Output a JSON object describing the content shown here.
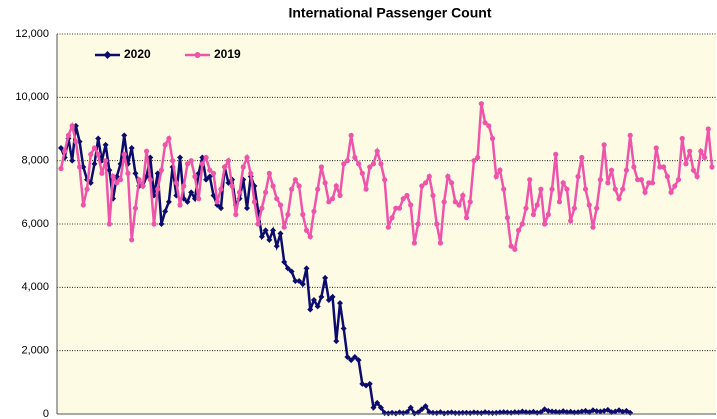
{
  "chart_data": {
    "type": "line",
    "title": "International Passenger Count",
    "ylim": [
      0,
      12000
    ],
    "yticks": [
      0,
      {
        "value": 2000,
        "label": "2,000"
      },
      {
        "value": 4000,
        "label": "4,000"
      },
      {
        "value": 6000,
        "label": "6,000"
      },
      {
        "value": 8000,
        "label": "8,000"
      },
      {
        "value": 10000,
        "label": "10,000"
      },
      {
        "value": 12000,
        "label": "12,000"
      }
    ],
    "grid": true,
    "legend": "top-left",
    "series": [
      {
        "name": "2020",
        "color": "#0c0c6e",
        "marker": "diamond",
        "values": [
          8400,
          8100,
          8700,
          8000,
          9100,
          8600,
          7800,
          7400,
          7300,
          7900,
          8700,
          8000,
          8500,
          7700,
          6800,
          7500,
          7900,
          8800,
          7900,
          8400,
          7600,
          7200,
          7200,
          7500,
          8100,
          6900,
          7600,
          6000,
          6400,
          6700,
          7800,
          6900,
          8100,
          6800,
          6700,
          7000,
          6800,
          7600,
          8100,
          7400,
          7500,
          6900,
          6600,
          6500,
          7800,
          7300,
          7400,
          6600,
          6800,
          7400,
          6500,
          7500,
          7200,
          6400,
          5600,
          5800,
          5500,
          5800,
          5300,
          5700,
          4800,
          4600,
          4500,
          4200,
          4200,
          4100,
          4600,
          3300,
          3600,
          3400,
          3700,
          4300,
          3600,
          3700,
          2300,
          3500,
          2700,
          1800,
          1700,
          1800,
          1700,
          950,
          900,
          950,
          200,
          350,
          200,
          30,
          20,
          40,
          20,
          50,
          30,
          60,
          200,
          20,
          50,
          150,
          250,
          60,
          40,
          30,
          60,
          20,
          40,
          50,
          30,
          30,
          40,
          40,
          30,
          50,
          40,
          30,
          60,
          40,
          30,
          40,
          50,
          60,
          50,
          40,
          60,
          50,
          80,
          60,
          50,
          70,
          40,
          60,
          150,
          100,
          80,
          70,
          60,
          90,
          60,
          70,
          50,
          60,
          80,
          100,
          60,
          120,
          90,
          80,
          100,
          130,
          60,
          80,
          120,
          70,
          100,
          40,
          null,
          null,
          null,
          null,
          null,
          null,
          null,
          null,
          null,
          null,
          null,
          null,
          null,
          null,
          null,
          null,
          null,
          null,
          null,
          null,
          null,
          null
        ]
      },
      {
        "name": "2019",
        "color": "#ee55aa",
        "marker": "circle",
        "values": [
          7750,
          8300,
          8800,
          9100,
          8600,
          7800,
          6600,
          7100,
          8200,
          8400,
          8200,
          7600,
          8000,
          6000,
          7500,
          7300,
          7400,
          8200,
          7600,
          5500,
          6500,
          7400,
          7200,
          8300,
          7400,
          6000,
          7100,
          7700,
          8500,
          8700,
          8000,
          7300,
          6600,
          7200,
          7900,
          8000,
          7500,
          6800,
          7900,
          8100,
          7700,
          7600,
          6700,
          7100,
          7800,
          8000,
          7200,
          6300,
          7000,
          7800,
          8100,
          7600,
          6700,
          6000,
          6500,
          7000,
          7600,
          7200,
          6800,
          6600,
          5900,
          6300,
          7100,
          7400,
          7200,
          6300,
          5800,
          5600,
          6400,
          7100,
          7800,
          7300,
          6700,
          6800,
          7200,
          6900,
          7900,
          8000,
          8800,
          8100,
          7900,
          7600,
          7100,
          7800,
          7900,
          8300,
          7900,
          7400,
          5900,
          6200,
          6500,
          6500,
          6800,
          6900,
          6600,
          5400,
          6000,
          7200,
          7300,
          7500,
          6900,
          6000,
          5400,
          6700,
          7500,
          7300,
          6700,
          6600,
          6900,
          6200,
          6700,
          8000,
          8100,
          9800,
          9200,
          9100,
          8700,
          7500,
          7700,
          7100,
          6200,
          5300,
          5200,
          5800,
          6000,
          6500,
          7400,
          6300,
          6600,
          7100,
          6000,
          6300,
          7100,
          8200,
          6700,
          7300,
          7100,
          6100,
          6500,
          7500,
          8100,
          7100,
          6600,
          5900,
          6500,
          7400,
          8500,
          7300,
          7700,
          7100,
          6800,
          7100,
          7700,
          8800,
          7800,
          7400,
          7400,
          7000,
          7300,
          7300,
          8400,
          7800,
          7800,
          7500,
          7000,
          7200,
          7400,
          8700,
          7900,
          8300,
          7700,
          7500,
          8300,
          8100,
          9000,
          7800
        ]
      }
    ]
  }
}
